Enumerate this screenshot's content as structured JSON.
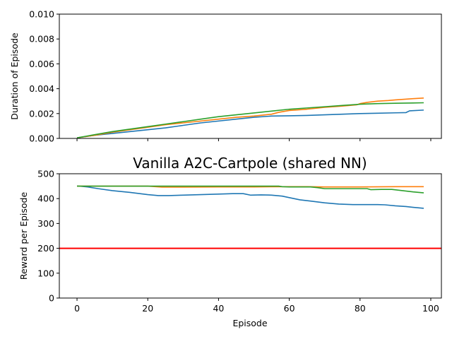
{
  "chart_data": [
    {
      "type": "line",
      "title": "",
      "xlabel": "",
      "ylabel": "Duration of Episode",
      "xlim": [
        -5,
        103
      ],
      "ylim": [
        0.0,
        0.01
      ],
      "x_ticks": [
        0,
        20,
        40,
        60,
        80,
        100
      ],
      "y_ticks": [
        "0.000",
        "0.002",
        "0.004",
        "0.006",
        "0.008",
        "0.010"
      ],
      "y_tick_values": [
        0.0,
        0.002,
        0.004,
        0.006,
        0.008,
        0.01
      ],
      "show_x_tick_labels": false,
      "grid": false,
      "series": [
        {
          "color": "#1f77b4",
          "x": [
            0,
            5,
            10,
            15,
            20,
            25,
            30,
            35,
            40,
            45,
            50,
            55,
            60,
            65,
            70,
            75,
            80,
            85,
            90,
            93,
            94,
            98
          ],
          "y": [
            5e-05,
            0.00025,
            0.0004,
            0.00055,
            0.0007,
            0.00085,
            0.00105,
            0.00125,
            0.0014,
            0.00155,
            0.0017,
            0.0018,
            0.00182,
            0.00185,
            0.0019,
            0.00195,
            0.002,
            0.00203,
            0.00206,
            0.00208,
            0.00222,
            0.00228
          ]
        },
        {
          "color": "#ff7f0e",
          "x": [
            0,
            5,
            10,
            15,
            20,
            25,
            30,
            35,
            40,
            45,
            50,
            55,
            57,
            60,
            65,
            70,
            75,
            79,
            80,
            82,
            85,
            88,
            90,
            95,
            98
          ],
          "y": [
            5e-05,
            0.00025,
            0.0005,
            0.0007,
            0.0009,
            0.0011,
            0.00125,
            0.0014,
            0.00155,
            0.0017,
            0.0018,
            0.00195,
            0.0021,
            0.00225,
            0.00235,
            0.0025,
            0.0026,
            0.0027,
            0.0028,
            0.0029,
            0.003,
            0.00305,
            0.0031,
            0.0032,
            0.00325
          ]
        },
        {
          "color": "#2ca02c",
          "x": [
            0,
            5,
            10,
            15,
            20,
            25,
            30,
            35,
            40,
            45,
            50,
            55,
            60,
            65,
            70,
            75,
            80,
            85,
            90,
            95,
            98
          ],
          "y": [
            5e-05,
            0.0003,
            0.00055,
            0.00075,
            0.00095,
            0.00115,
            0.00135,
            0.00155,
            0.00175,
            0.0019,
            0.00205,
            0.0022,
            0.00235,
            0.00245,
            0.00255,
            0.00265,
            0.00275,
            0.0028,
            0.00283,
            0.00285,
            0.00287
          ]
        }
      ]
    },
    {
      "type": "line",
      "title": "Vanilla A2C-Cartpole (shared NN)",
      "xlabel": "Episode",
      "ylabel": "Reward per Episode",
      "xlim": [
        -5,
        103
      ],
      "ylim": [
        0,
        500
      ],
      "x_ticks": [
        0,
        20,
        40,
        60,
        80,
        100
      ],
      "y_ticks": [
        "0",
        "100",
        "200",
        "300",
        "400",
        "500"
      ],
      "y_tick_values": [
        0,
        100,
        200,
        300,
        400,
        500
      ],
      "show_x_tick_labels": true,
      "grid": false,
      "hline": {
        "y": 200,
        "color": "#ff0000"
      },
      "series": [
        {
          "color": "#1f77b4",
          "x": [
            0,
            3,
            6,
            10,
            15,
            20,
            23,
            26,
            30,
            35,
            40,
            44,
            47,
            49,
            52,
            55,
            58,
            60,
            63,
            66,
            70,
            74,
            78,
            82,
            85,
            87,
            90,
            93,
            95,
            98
          ],
          "y": [
            451,
            447,
            440,
            432,
            425,
            416,
            412,
            412,
            414,
            416,
            418,
            420,
            420,
            414,
            415,
            414,
            410,
            404,
            395,
            390,
            383,
            378,
            376,
            376,
            376,
            375,
            371,
            368,
            365,
            361
          ]
        },
        {
          "color": "#ff7f0e",
          "x": [
            0,
            10,
            20,
            24,
            30,
            40,
            50,
            60,
            65,
            70,
            80,
            90,
            98
          ],
          "y": [
            450,
            450,
            450,
            446,
            446,
            447,
            447,
            448,
            448,
            447,
            447,
            448,
            448
          ]
        },
        {
          "color": "#2ca02c",
          "x": [
            0,
            10,
            20,
            30,
            40,
            50,
            57,
            58,
            60,
            66,
            68,
            70,
            75,
            78,
            80,
            82,
            83,
            86,
            89,
            92,
            95,
            98
          ],
          "y": [
            450,
            450,
            450,
            450,
            450,
            450,
            450,
            448,
            447,
            447,
            444,
            440,
            440,
            440,
            440,
            440,
            436,
            437,
            437,
            432,
            427,
            423
          ]
        }
      ]
    }
  ]
}
